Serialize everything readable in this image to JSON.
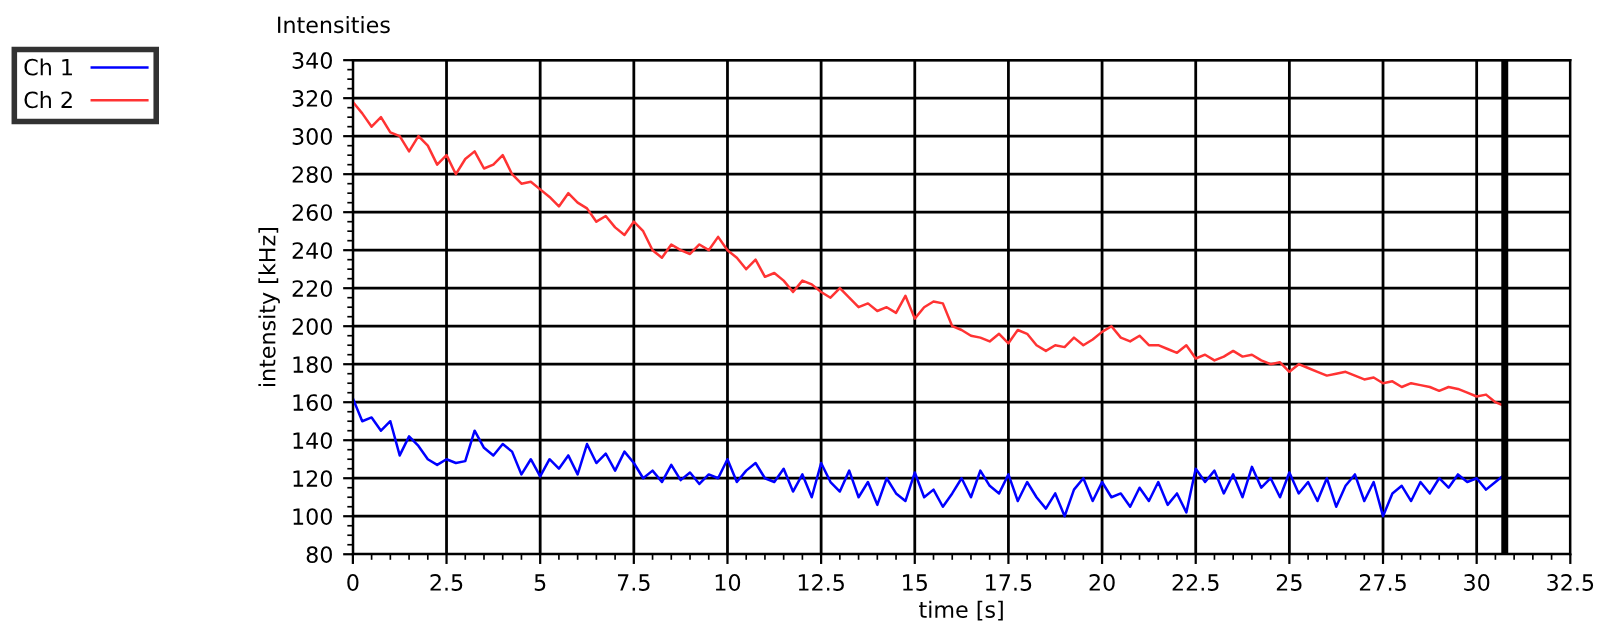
{
  "chart_data": {
    "type": "line",
    "title": "Intensities",
    "xlabel": "time [s]",
    "ylabel": "intensity [kHz]",
    "x": [
      0,
      0.25,
      0.5,
      0.75,
      1,
      1.25,
      1.5,
      1.75,
      2,
      2.25,
      2.5,
      2.75,
      3,
      3.25,
      3.5,
      3.75,
      4,
      4.25,
      4.5,
      4.75,
      5,
      5.25,
      5.5,
      5.75,
      6,
      6.25,
      6.5,
      6.75,
      7,
      7.25,
      7.5,
      7.75,
      8,
      8.25,
      8.5,
      8.75,
      9,
      9.25,
      9.5,
      9.75,
      10,
      10.25,
      10.5,
      10.75,
      11,
      11.25,
      11.5,
      11.75,
      12,
      12.25,
      12.5,
      12.75,
      13,
      13.25,
      13.5,
      13.75,
      14,
      14.25,
      14.5,
      14.75,
      15,
      15.25,
      15.5,
      15.75,
      16,
      16.25,
      16.5,
      16.75,
      17,
      17.25,
      17.5,
      17.75,
      18,
      18.25,
      18.5,
      18.75,
      19,
      19.25,
      19.5,
      19.75,
      20,
      20.25,
      20.5,
      20.75,
      21,
      21.25,
      21.5,
      21.75,
      22,
      22.25,
      22.5,
      22.75,
      23,
      23.25,
      23.5,
      23.75,
      24,
      24.25,
      24.5,
      24.75,
      25,
      25.25,
      25.5,
      25.75,
      26,
      26.25,
      26.5,
      26.75,
      27,
      27.25,
      27.5,
      27.75,
      28,
      28.25,
      28.5,
      28.75,
      29,
      29.25,
      29.5,
      29.75,
      30,
      30.25,
      30.5,
      30.75
    ],
    "series": [
      {
        "name": "Ch 1",
        "color": "#0000ff",
        "values": [
          162,
          150,
          152,
          145,
          150,
          132,
          142,
          137,
          130,
          127,
          130,
          128,
          129,
          145,
          136,
          132,
          138,
          134,
          122,
          130,
          121,
          130,
          125,
          132,
          122,
          138,
          128,
          133,
          124,
          134,
          128,
          120,
          124,
          118,
          127,
          119,
          123,
          117,
          122,
          120,
          130,
          118,
          124,
          128,
          120,
          118,
          125,
          113,
          122,
          110,
          128,
          118,
          113,
          124,
          110,
          118,
          106,
          120,
          112,
          108,
          123,
          110,
          114,
          105,
          112,
          120,
          110,
          124,
          116,
          112,
          122,
          108,
          118,
          110,
          104,
          112,
          100,
          114,
          120,
          108,
          118,
          110,
          112,
          105,
          115,
          108,
          118,
          106,
          112,
          102,
          125,
          118,
          124,
          112,
          122,
          110,
          126,
          115,
          120,
          110,
          123,
          112,
          118,
          108,
          120,
          105,
          116,
          122,
          108,
          118,
          100,
          112,
          116,
          108,
          118,
          112,
          120,
          115,
          122,
          118,
          120,
          114,
          118,
          122
        ]
      },
      {
        "name": "Ch 2",
        "color": "#ff3333",
        "values": [
          318,
          312,
          305,
          310,
          302,
          300,
          292,
          300,
          295,
          285,
          290,
          280,
          288,
          292,
          283,
          285,
          290,
          280,
          275,
          276,
          272,
          268,
          263,
          270,
          265,
          262,
          255,
          258,
          252,
          248,
          255,
          250,
          240,
          236,
          243,
          240,
          238,
          243,
          240,
          247,
          240,
          236,
          230,
          235,
          226,
          228,
          224,
          218,
          224,
          222,
          218,
          215,
          220,
          215,
          210,
          212,
          208,
          210,
          207,
          216,
          204,
          210,
          213,
          212,
          200,
          198,
          195,
          194,
          192,
          196,
          191,
          198,
          196,
          190,
          187,
          190,
          189,
          194,
          190,
          193,
          197,
          200,
          194,
          192,
          195,
          190,
          190,
          188,
          186,
          190,
          183,
          185,
          182,
          184,
          187,
          184,
          185,
          182,
          180,
          181,
          176,
          180,
          178,
          176,
          174,
          175,
          176,
          174,
          172,
          173,
          170,
          171,
          168,
          170,
          169,
          168,
          166,
          168,
          167,
          165,
          163,
          164,
          160,
          158
        ]
      }
    ],
    "xlim": [
      0,
      32.5
    ],
    "xticks": [
      0,
      2.5,
      5,
      7.5,
      10,
      12.5,
      15,
      17.5,
      20,
      22.5,
      25,
      27.5,
      30,
      32.5
    ],
    "ylim": [
      80,
      340
    ],
    "yticks": [
      80,
      100,
      120,
      140,
      160,
      180,
      200,
      220,
      240,
      260,
      280,
      300,
      320,
      340
    ],
    "ref_lines": [
      {
        "axis": "x",
        "value": 30.75,
        "color": "#000000"
      }
    ],
    "grid": true,
    "legend": "top left",
    "marker": "none",
    "line_style": "solid"
  }
}
